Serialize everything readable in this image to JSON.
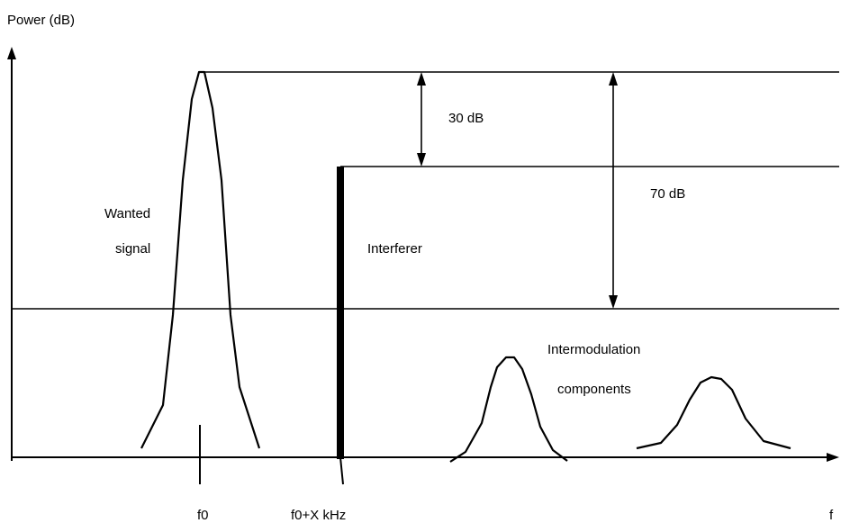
{
  "axes": {
    "y_label": "Power (dB)",
    "x_label": "f"
  },
  "frequencies": {
    "wanted": "f0",
    "interferer": "f0+X kHz"
  },
  "labels": {
    "wanted_line1": "Wanted",
    "wanted_line2": "signal",
    "interferer": "Interferer",
    "intermod_line1": "Intermodulation",
    "intermod_line2": "components"
  },
  "levels": {
    "wanted_to_interferer": "30 dB",
    "wanted_to_intermod": "70 dB"
  },
  "colors": {
    "ink": "#000000",
    "background": "#ffffff"
  }
}
